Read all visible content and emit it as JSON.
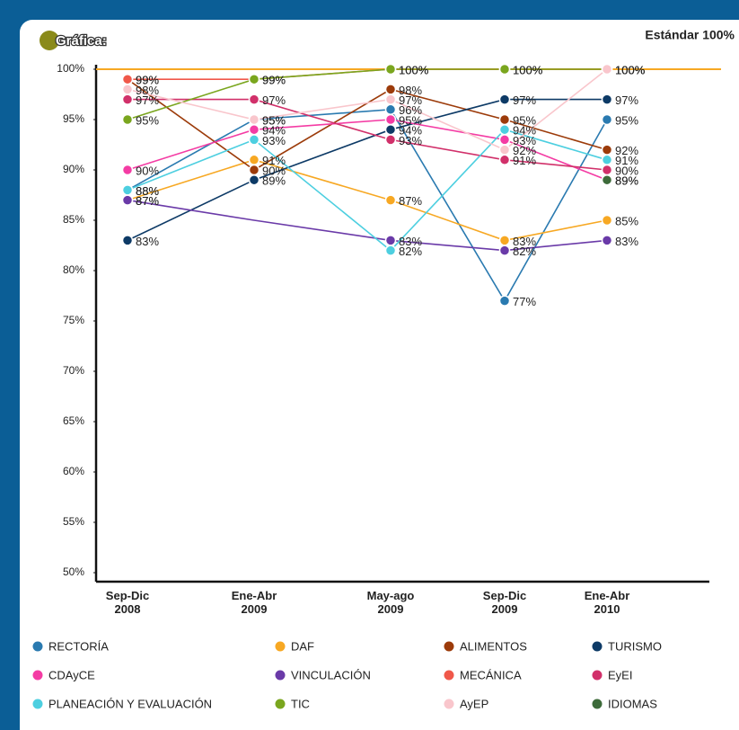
{
  "chart_data": {
    "type": "line",
    "title": "Gráfica:",
    "standard_label": "Estándar 100%",
    "standard": 100,
    "standard_color": "#f7a823",
    "categories": [
      "Sep-Dic 2008",
      "Ene-Abr 2009",
      "May-ago 2009",
      "Sep-Dic 2009",
      "Ene-Abr 2010"
    ],
    "ylim": [
      50,
      100
    ],
    "yticks": [
      {
        "value": 100,
        "label": "100%"
      },
      {
        "value": 95,
        "label": "95%"
      },
      {
        "value": 90,
        "label": "90%"
      },
      {
        "value": 85,
        "label": "85%"
      },
      {
        "value": 80,
        "label": "80%"
      },
      {
        "value": 75,
        "label": "75%"
      },
      {
        "value": 70,
        "label": "70%"
      },
      {
        "value": 65,
        "label": "65%"
      },
      {
        "value": 60,
        "label": "60%"
      },
      {
        "value": 55,
        "label": "55%"
      },
      {
        "value": 50,
        "label": "50%"
      }
    ],
    "series": [
      {
        "name": "RECTORÍA",
        "color": "#2a7ab0",
        "values": [
          88,
          95,
          96,
          77,
          95
        ],
        "value_labels": [
          "88%",
          "95%",
          "96%",
          "77%",
          "95%"
        ]
      },
      {
        "name": "DAF",
        "color": "#f7a823",
        "values": [
          87,
          91,
          87,
          83,
          85
        ],
        "value_labels": [
          "87%",
          "91%",
          "87%",
          "83%",
          "85%"
        ]
      },
      {
        "name": "ALIMENTOS",
        "color": "#9c3b0a",
        "values": [
          99,
          90,
          98,
          95,
          92
        ],
        "value_labels": [
          "99%",
          "90%",
          "98%",
          "95%",
          "92%"
        ]
      },
      {
        "name": "TURISMO",
        "color": "#0d3a66",
        "values": [
          83,
          89,
          94,
          97,
          97
        ],
        "value_labels": [
          "83%",
          "89%",
          "94%",
          "97%",
          "97%"
        ]
      },
      {
        "name": "CDAyCE",
        "color": "#f43ca4",
        "values": [
          90,
          94,
          95,
          93,
          89
        ],
        "value_labels": [
          "90%",
          "94%",
          "95%",
          "93%",
          "89%"
        ]
      },
      {
        "name": "VINCULACIÓN",
        "color": "#6a3aa8",
        "values": [
          87,
          85,
          83,
          82,
          83
        ],
        "value_labels": [
          "87%",
          null,
          "83%",
          "82%",
          "83%"
        ]
      },
      {
        "name": "MECÁNICA",
        "color": "#f0584a",
        "values": [
          99,
          99,
          100,
          100,
          100
        ],
        "value_labels": [
          "99%",
          "99%",
          "100%",
          "100%",
          "100%"
        ]
      },
      {
        "name": "EyEI",
        "color": "#d1306a",
        "values": [
          97,
          97,
          93,
          91,
          90
        ],
        "value_labels": [
          "97%",
          "97%",
          "93%",
          "91%",
          "90%"
        ]
      },
      {
        "name": "PLANEACIÓN Y EVALUACIÓN",
        "color": "#4dcfe0",
        "values": [
          88,
          93,
          82,
          94,
          91
        ],
        "value_labels": [
          "88%",
          "93%",
          "82%",
          "94%",
          "91%"
        ]
      },
      {
        "name": "TIC",
        "color": "#7aa61e",
        "values": [
          95,
          99,
          100,
          100,
          100
        ],
        "value_labels": [
          "95%",
          "99%",
          "100%",
          "100%",
          "100%"
        ]
      },
      {
        "name": "AyEP",
        "color": "#f9c6cc",
        "values": [
          98,
          95,
          97,
          92,
          100
        ],
        "value_labels": [
          "98%",
          "95%",
          "97%",
          "92%",
          "100%"
        ]
      },
      {
        "name": "IDIOMAS",
        "color": "#3d6b3a",
        "values": [
          null,
          null,
          null,
          null,
          89
        ],
        "value_labels": [
          null,
          null,
          null,
          null,
          "89%"
        ]
      }
    ]
  }
}
